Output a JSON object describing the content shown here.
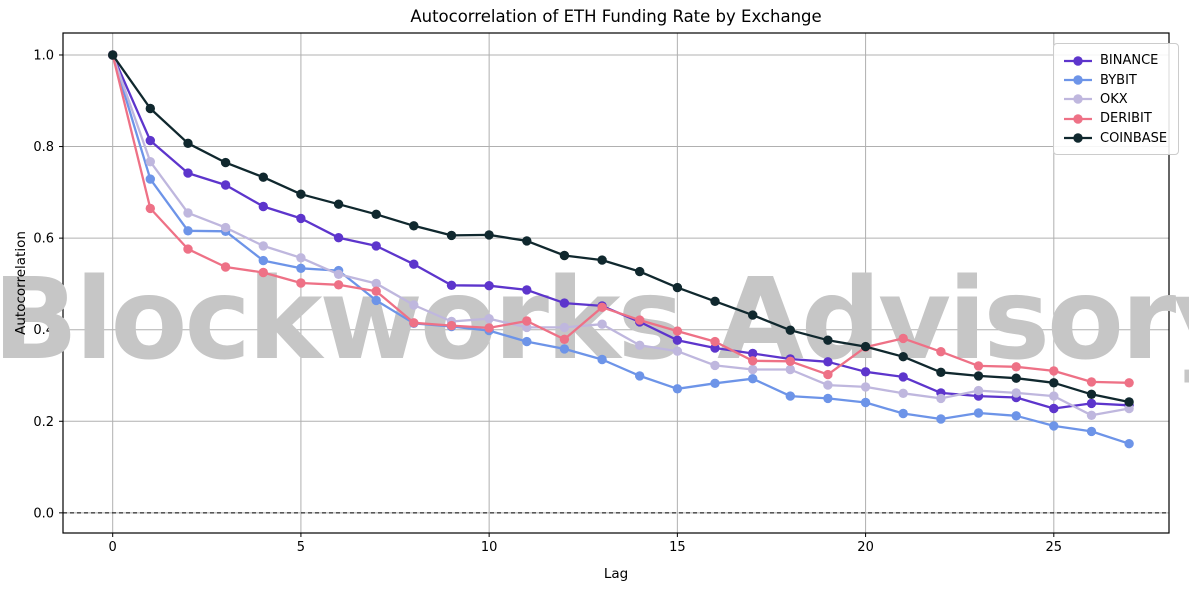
{
  "figure": {
    "watermark": "Blockworks Advisory"
  },
  "chart_data": {
    "type": "line",
    "title": "Autocorrelation of ETH Funding Rate by Exchange",
    "xlabel": "Lag",
    "ylabel": "Autocorrelation",
    "x": [
      0,
      1,
      2,
      3,
      4,
      5,
      6,
      7,
      8,
      9,
      10,
      11,
      12,
      13,
      14,
      15,
      16,
      17,
      18,
      19,
      20,
      21,
      22,
      23,
      24,
      25,
      26,
      27
    ],
    "series": [
      {
        "name": "BINANCE",
        "color": "#5d35cc",
        "values": [
          1.0,
          0.813,
          0.742,
          0.716,
          0.669,
          0.643,
          0.601,
          0.583,
          0.543,
          0.497,
          0.496,
          0.487,
          0.458,
          0.452,
          0.417,
          0.377,
          0.36,
          0.348,
          0.336,
          0.33,
          0.308,
          0.297,
          0.262,
          0.255,
          0.252,
          0.228,
          0.239,
          0.235
        ]
      },
      {
        "name": "BYBIT",
        "color": "#6d94e8",
        "values": [
          1.0,
          0.729,
          0.616,
          0.615,
          0.551,
          0.534,
          0.529,
          0.464,
          0.414,
          0.407,
          0.398,
          0.374,
          0.358,
          0.335,
          0.299,
          0.271,
          0.283,
          0.293,
          0.255,
          0.25,
          0.241,
          0.217,
          0.205,
          0.218,
          0.212,
          0.19,
          0.178,
          0.151
        ]
      },
      {
        "name": "OKX",
        "color": "#bfb7de",
        "values": [
          1.0,
          0.767,
          0.655,
          0.623,
          0.583,
          0.557,
          0.521,
          0.501,
          0.454,
          0.418,
          0.424,
          0.405,
          0.405,
          0.412,
          0.366,
          0.353,
          0.322,
          0.313,
          0.313,
          0.279,
          0.275,
          0.261,
          0.25,
          0.267,
          0.262,
          0.255,
          0.213,
          0.228
        ]
      },
      {
        "name": "DERIBIT",
        "color": "#ee7186",
        "values": [
          1.0,
          0.665,
          0.576,
          0.537,
          0.525,
          0.502,
          0.498,
          0.484,
          0.415,
          0.409,
          0.404,
          0.419,
          0.379,
          0.449,
          0.421,
          0.397,
          0.374,
          0.332,
          0.331,
          0.302,
          0.362,
          0.381,
          0.352,
          0.321,
          0.319,
          0.31,
          0.286,
          0.284
        ]
      },
      {
        "name": "COINBASE",
        "color": "#10282e",
        "values": [
          1.0,
          0.883,
          0.807,
          0.765,
          0.733,
          0.696,
          0.674,
          0.652,
          0.627,
          0.606,
          0.607,
          0.594,
          0.562,
          0.552,
          0.527,
          0.492,
          0.462,
          0.432,
          0.399,
          0.377,
          0.363,
          0.341,
          0.307,
          0.299,
          0.294,
          0.284,
          0.259,
          0.242
        ]
      }
    ],
    "xticks": [
      0,
      5,
      10,
      15,
      20,
      25
    ],
    "xtick_labels": [
      "0",
      "5",
      "10",
      "15",
      "20",
      "25"
    ],
    "yticks": [
      0.0,
      0.2,
      0.4,
      0.6,
      0.8,
      1.0
    ],
    "ytick_labels": [
      "0.0",
      "0.2",
      "0.4",
      "0.6",
      "0.8",
      "1.0"
    ],
    "xlim": [
      -1.32,
      28.06
    ],
    "ylim": [
      -0.044,
      1.048
    ],
    "grid": true,
    "zero_line": true,
    "grid_color": "#b0b0b0",
    "legend": {
      "position": "upper right",
      "entries": [
        "BINANCE",
        "BYBIT",
        "OKX",
        "DERIBIT",
        "COINBASE"
      ]
    }
  }
}
